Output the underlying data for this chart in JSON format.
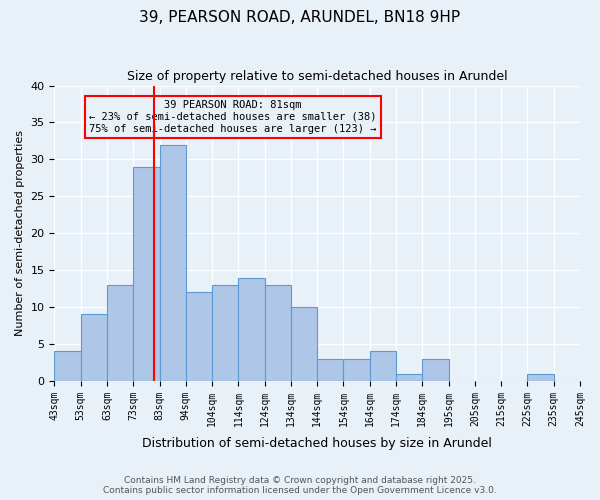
{
  "title": "39, PEARSON ROAD, ARUNDEL, BN18 9HP",
  "subtitle": "Size of property relative to semi-detached houses in Arundel",
  "xlabel": "Distribution of semi-detached houses by size in Arundel",
  "ylabel": "Number of semi-detached properties",
  "footer_line1": "Contains HM Land Registry data © Crown copyright and database right 2025.",
  "footer_line2": "Contains public sector information licensed under the Open Government Licence v3.0.",
  "tick_labels": [
    "43sqm",
    "53sqm",
    "63sqm",
    "73sqm",
    "83sqm",
    "94sqm",
    "104sqm",
    "114sqm",
    "124sqm",
    "134sqm",
    "144sqm",
    "154sqm",
    "164sqm",
    "174sqm",
    "184sqm",
    "195sqm",
    "205sqm",
    "215sqm",
    "225sqm",
    "235sqm",
    "245sqm"
  ],
  "bar_values": [
    4,
    9,
    13,
    29,
    32,
    12,
    13,
    14,
    13,
    10,
    3,
    3,
    4,
    1,
    3,
    0,
    0,
    0,
    1,
    0
  ],
  "bar_color": "#aec6e8",
  "bar_edge_color": "#5b9bd5",
  "background_color": "#e8f0f8",
  "grid_color": "#ffffff",
  "red_line_x": 3.8,
  "annotation_text_line1": "39 PEARSON ROAD: 81sqm",
  "annotation_text_line2": "← 23% of semi-detached houses are smaller (38)",
  "annotation_text_line3": "75% of semi-detached houses are larger (123) →",
  "ylim": [
    0,
    40
  ],
  "yticks": [
    0,
    5,
    10,
    15,
    20,
    25,
    30,
    35,
    40
  ]
}
